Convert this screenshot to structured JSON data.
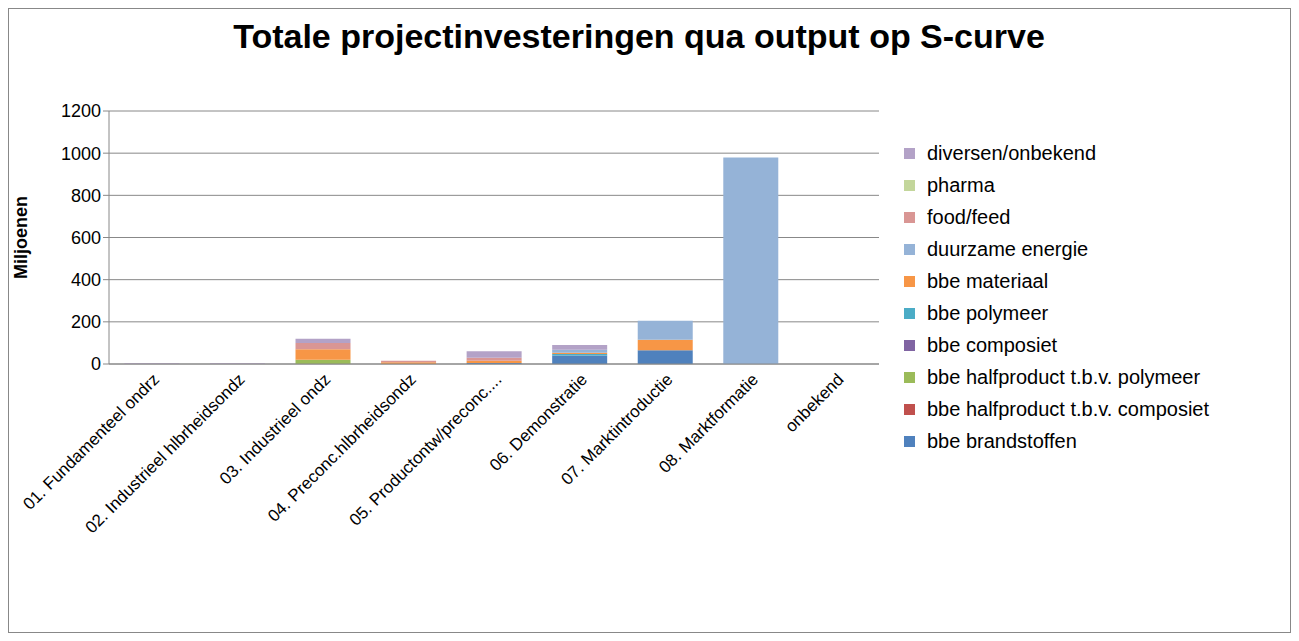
{
  "chart_data": {
    "type": "bar",
    "title": "Totale projectinvesteringen qua output op S-curve",
    "ylabel": "Miljoenen",
    "stacked": true,
    "grid": true,
    "legend": "right",
    "categories": [
      "01. Fundamenteel ondrz",
      "02. Industrieel hlbrheidsondz",
      "03. Industrieel ondz",
      "04. Preconc.hlbrheidsondz",
      "05. Productontw/preconc....",
      "06. Demonstratie",
      "07. Marktintroductie",
      "08. Marktformatie",
      "onbekend"
    ],
    "ylim": [
      0,
      1200
    ],
    "yticks": [
      0,
      200,
      400,
      600,
      800,
      1000,
      1200
    ],
    "series": [
      {
        "name": "bbe brandstoffen",
        "color": "#4F81BD",
        "values": [
          0,
          0,
          0,
          0,
          5,
          40,
          65,
          0,
          0
        ]
      },
      {
        "name": "bbe halfproduct t.b.v. composiet",
        "color": "#C0504D",
        "values": [
          0,
          0,
          0,
          0,
          0,
          0,
          0,
          0,
          0
        ]
      },
      {
        "name": "bbe halfproduct t.b.v. polymeer",
        "color": "#9BBB59",
        "values": [
          0,
          0,
          20,
          0,
          0,
          0,
          0,
          0,
          0
        ]
      },
      {
        "name": "bbe composiet",
        "color": "#8064A2",
        "values": [
          0,
          0,
          0,
          0,
          0,
          0,
          0,
          0,
          0
        ]
      },
      {
        "name": "bbe polymeer",
        "color": "#4BACC6",
        "values": [
          0,
          0,
          0,
          0,
          0,
          8,
          0,
          0,
          0
        ]
      },
      {
        "name": "bbe materiaal",
        "color": "#F79646",
        "values": [
          0,
          0,
          50,
          8,
          10,
          5,
          50,
          0,
          0
        ]
      },
      {
        "name": "duurzame energie",
        "color": "#95B3D7",
        "values": [
          0,
          0,
          0,
          0,
          0,
          15,
          90,
          980,
          0
        ]
      },
      {
        "name": "food/feed",
        "color": "#D99694",
        "values": [
          0,
          0,
          30,
          7,
          15,
          0,
          0,
          0,
          0
        ]
      },
      {
        "name": "pharma",
        "color": "#C3D69B",
        "values": [
          0,
          0,
          0,
          0,
          0,
          0,
          0,
          0,
          0
        ]
      },
      {
        "name": "diversen/onbekend",
        "color": "#B3A2C7",
        "values": [
          4,
          4,
          20,
          0,
          30,
          22,
          0,
          0,
          0
        ]
      }
    ]
  }
}
